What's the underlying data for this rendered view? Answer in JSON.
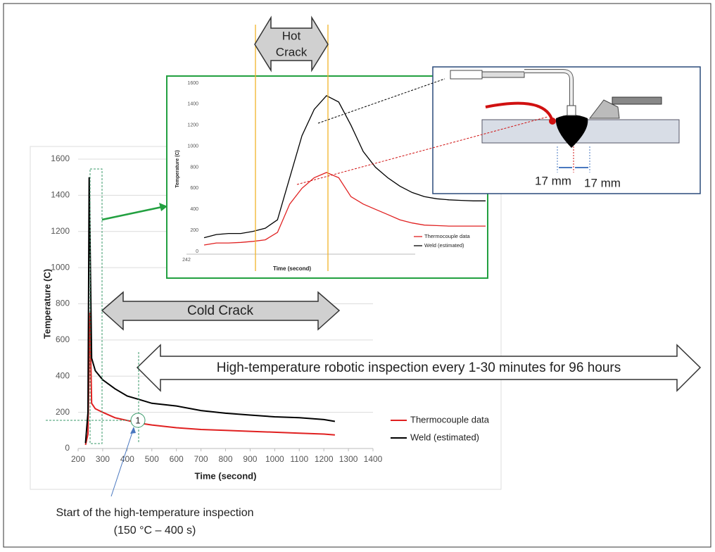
{
  "chart_data": [
    {
      "type": "line",
      "x_label": "Time (second)",
      "y_label": "Temperature (C)",
      "x": [
        230,
        240,
        245,
        248,
        255,
        270,
        300,
        350,
        400,
        450,
        500,
        600,
        700,
        800,
        900,
        1000,
        1100,
        1200,
        1245
      ],
      "series": [
        {
          "name": "Thermocouple data",
          "color": "#e02020",
          "values": [
            20,
            80,
            500,
            750,
            250,
            220,
            200,
            170,
            155,
            140,
            130,
            115,
            105,
            100,
            95,
            90,
            85,
            80,
            75
          ]
        },
        {
          "name": "Weld (estimated)",
          "color": "#000000",
          "values": [
            30,
            200,
            1500,
            1200,
            500,
            430,
            380,
            330,
            290,
            270,
            250,
            235,
            210,
            195,
            185,
            175,
            170,
            160,
            150
          ]
        }
      ],
      "xlim": [
        200,
        1400
      ],
      "xticks": [
        200,
        300,
        400,
        500,
        600,
        700,
        800,
        900,
        1000,
        1100,
        1200,
        1300,
        1400
      ],
      "ylim": [
        0,
        1600
      ],
      "yticks": [
        0,
        200,
        400,
        600,
        800,
        1000,
        1200,
        1400,
        1600
      ],
      "grid": true,
      "annotations": {
        "cold_crack": "Cold Crack",
        "inspection": "High-temperature robotic inspection every 1-30 minutes for 96 hours",
        "marker": "1",
        "start_lines": [
          "Start of the high-temperature inspection",
          "(150 °C – 400 s)"
        ]
      }
    },
    {
      "type": "line",
      "x_label": "Time (second)",
      "y_label": "Temperature (C)",
      "categories": [
        "242",
        null,
        null,
        null,
        null,
        null,
        null,
        null,
        null,
        null,
        null,
        null,
        null,
        null,
        null,
        null,
        null,
        null,
        null,
        null,
        null,
        null,
        null,
        null
      ],
      "series": [
        {
          "name": "Thermocouple data",
          "color": "#e02020",
          "values": [
            60,
            80,
            80,
            85,
            95,
            110,
            180,
            450,
            600,
            700,
            750,
            700,
            520,
            450,
            400,
            350,
            300,
            270,
            250,
            245,
            240,
            240,
            240,
            240
          ]
        },
        {
          "name": "Weld (estimated)",
          "color": "#000000",
          "values": [
            130,
            160,
            170,
            170,
            190,
            220,
            300,
            700,
            1100,
            1350,
            1480,
            1420,
            1200,
            950,
            800,
            700,
            620,
            560,
            520,
            500,
            490,
            485,
            480,
            480
          ]
        }
      ],
      "ylim": [
        0,
        1600
      ],
      "yticks": [
        0,
        200,
        400,
        600,
        800,
        1000,
        1200,
        1400,
        1600
      ],
      "annotations": {
        "hot_crack_lines": [
          "Hot",
          "Crack"
        ]
      }
    }
  ],
  "diagram": {
    "labels": [
      "17 mm",
      "17 mm"
    ]
  }
}
